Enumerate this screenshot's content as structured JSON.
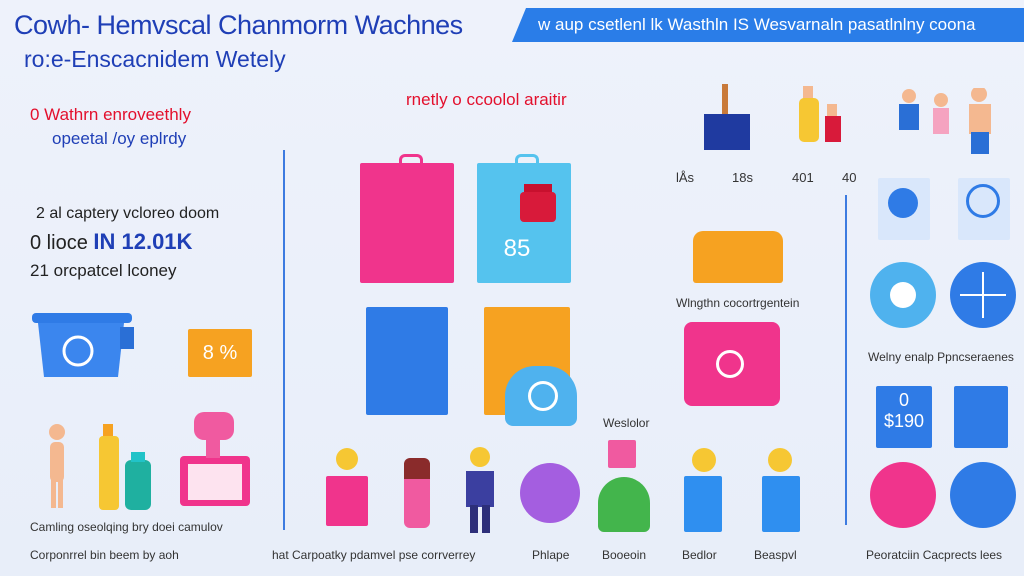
{
  "header": {
    "title_line1": "Cowh- Hemvscal Chanmorm Wachnes",
    "title_line2": "ro:e-Enscacnidem Wetely",
    "banner": "w aup csetlenl lk Wasthln IS Wesvarnaln pasatlnlny coona"
  },
  "left": {
    "red_line": "0 Wathrn enroveethly",
    "blue_line": "opeetal /oy eplrdy",
    "stat1": "2 al captery vcloreo doom",
    "stat2_prefix": "0 lioce",
    "stat2_value": "IN 12.01K",
    "stat3": "21 orcpatcel lconey",
    "badge": "8 %",
    "caption1": "Camling oseolqing bry doei camulov",
    "caption2": "Corponrrel bin beem by aoh"
  },
  "middle": {
    "heading": "rnetly o ccoolol araitir",
    "bag_number": "85",
    "label_washer": "Weslolor"
  },
  "right": {
    "nums": [
      "lÅs",
      "18s",
      "401",
      "40"
    ],
    "label_wash": "Wlngthn cocortrgentein",
    "label_weekly": "Welny enalp Ppncseraenes",
    "price_top": "0",
    "price": "$190"
  },
  "footer": {
    "items": [
      "hat Carpoatky pdamvel pse corrverrey",
      "Phlape",
      "Booeoin",
      "Bedlor",
      "Beaspvl",
      "Peoratciin Cacprects lees"
    ]
  },
  "colors": {
    "brand_blue": "#1f3fb6",
    "accent_blue": "#2a7de8",
    "red": "#e3102d",
    "pink": "#f0348c",
    "orange": "#f6a221"
  }
}
